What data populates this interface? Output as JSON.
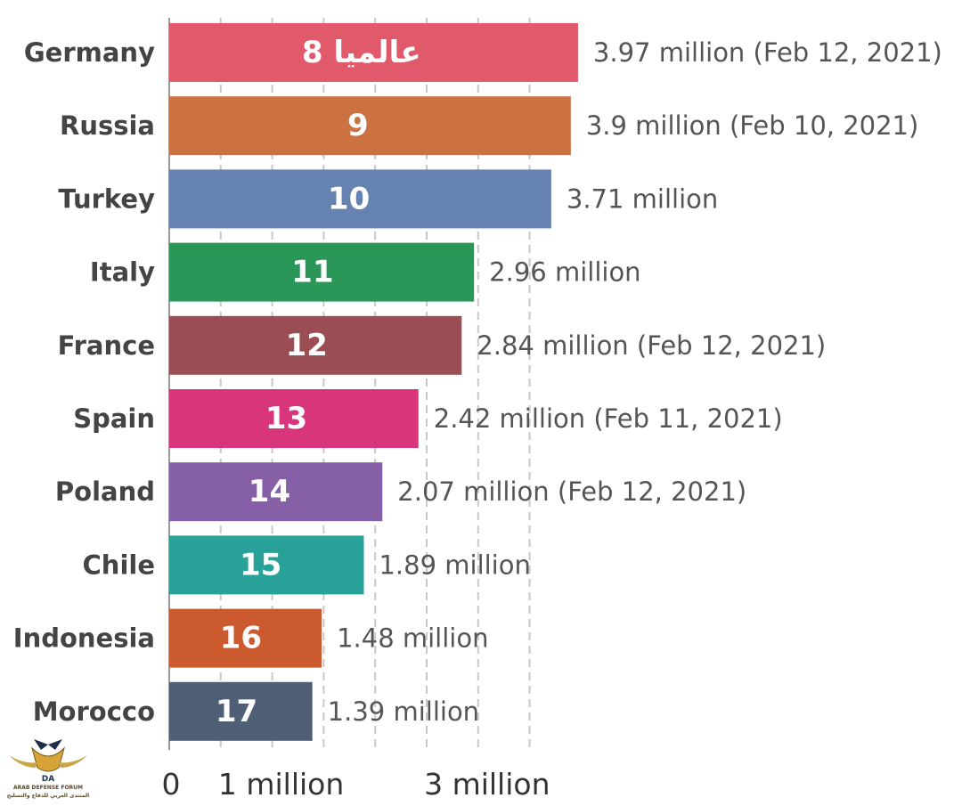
{
  "chart_data": {
    "type": "bar",
    "orientation": "horizontal",
    "categories": [
      "Germany",
      "Russia",
      "Turkey",
      "Italy",
      "France",
      "Spain",
      "Poland",
      "Chile",
      "Indonesia",
      "Morocco"
    ],
    "values": [
      3.97,
      3.9,
      3.71,
      2.96,
      2.84,
      2.42,
      2.07,
      1.89,
      1.48,
      1.39
    ],
    "value_labels": [
      "3.97 million (Feb 12, 2021)",
      "3.9 million (Feb 10, 2021)",
      "3.71 million",
      "2.96 million",
      "2.84 million (Feb 12, 2021)",
      "2.42 million (Feb 11, 2021)",
      "2.07 million (Feb 12, 2021)",
      "1.89 million",
      "1.48 million",
      "1.39 million"
    ],
    "bar_labels": [
      "8 عالميا",
      "9",
      "10",
      "11",
      "12",
      "13",
      "14",
      "15",
      "16",
      "17"
    ],
    "colors": [
      "#e05a6c",
      "#cc7240",
      "#6682b1",
      "#2a9658",
      "#9a4e54",
      "#d9357c",
      "#8560a7",
      "#28a199",
      "#cc5a2f",
      "#4f5f75"
    ],
    "xlim": [
      0,
      4.7
    ],
    "gridlines": [
      0,
      0.5,
      1,
      1.5,
      2,
      2.5,
      3,
      3.5
    ],
    "xticks": [
      {
        "value": 0,
        "label": "0"
      },
      {
        "value": 1,
        "label": "1 million"
      },
      {
        "value": 3,
        "label": "3 million"
      }
    ],
    "grid": true,
    "title": "",
    "xlabel": "",
    "ylabel": ""
  },
  "watermark": {
    "text_en": "ARAB DEFENSE FORUM",
    "text_ar": "المنتدى العربي للدفاع والتسليح",
    "badge": "DA"
  }
}
